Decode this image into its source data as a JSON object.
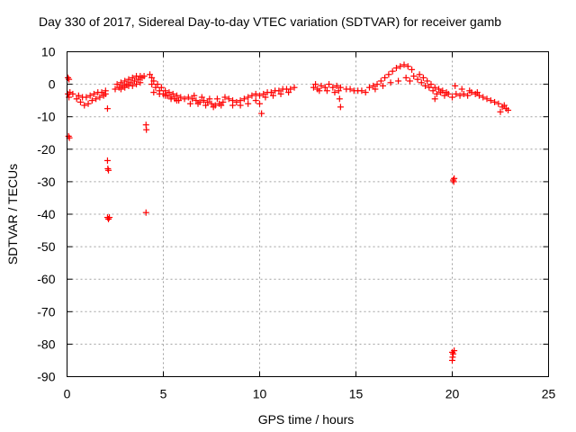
{
  "chart_data": {
    "type": "scatter",
    "title": "Day 330 of 2017, Sidereal Day-to-day VTEC variation (SDTVAR) for receiver gamb",
    "xlabel": "GPS time / hours",
    "ylabel": "SDTVAR / TECUs",
    "xlim": [
      0,
      25
    ],
    "ylim": [
      -90,
      10
    ],
    "xticks": [
      0,
      5,
      10,
      15,
      20,
      25
    ],
    "yticks": [
      10,
      0,
      -10,
      -20,
      -30,
      -40,
      -50,
      -60,
      -70,
      -80,
      -90
    ],
    "grid": true,
    "marker": "+",
    "series_color": "#ff0000",
    "series": [
      {
        "name": "SDTVAR",
        "points": [
          [
            0.05,
            2.0
          ],
          [
            0.1,
            1.5
          ],
          [
            0.05,
            -3.0
          ],
          [
            0.1,
            -4.0
          ],
          [
            0.15,
            -2.5
          ],
          [
            0.08,
            -16.0
          ],
          [
            0.12,
            -16.5
          ],
          [
            0.3,
            -3.0
          ],
          [
            0.5,
            -4.5
          ],
          [
            0.7,
            -5.5
          ],
          [
            0.9,
            -6.5
          ],
          [
            1.1,
            -6.0
          ],
          [
            1.3,
            -5.0
          ],
          [
            1.5,
            -4.5
          ],
          [
            1.7,
            -4.0
          ],
          [
            1.9,
            -3.5
          ],
          [
            2.0,
            -3.0
          ],
          [
            2.1,
            -7.5
          ],
          [
            0.6,
            -3.5
          ],
          [
            0.8,
            -4.0
          ],
          [
            1.0,
            -4.0
          ],
          [
            1.2,
            -3.5
          ],
          [
            1.4,
            -3.0
          ],
          [
            1.6,
            -2.5
          ],
          [
            1.8,
            -2.5
          ],
          [
            2.0,
            -2.0
          ],
          [
            2.1,
            -23.5
          ],
          [
            2.12,
            -26.0
          ],
          [
            2.15,
            -26.5
          ],
          [
            2.1,
            -41.0
          ],
          [
            2.15,
            -41.5
          ],
          [
            2.2,
            -41.0
          ],
          [
            2.5,
            -1.5
          ],
          [
            2.7,
            -1.0
          ],
          [
            2.9,
            -0.5
          ],
          [
            3.1,
            0.0
          ],
          [
            3.3,
            0.5
          ],
          [
            3.5,
            1.0
          ],
          [
            3.7,
            1.5
          ],
          [
            3.9,
            2.0
          ],
          [
            4.0,
            2.5
          ],
          [
            2.6,
            0.0
          ],
          [
            2.8,
            0.5
          ],
          [
            3.0,
            1.0
          ],
          [
            3.2,
            1.5
          ],
          [
            3.4,
            2.0
          ],
          [
            3.6,
            2.5
          ],
          [
            3.8,
            2.5
          ],
          [
            2.8,
            -1.5
          ],
          [
            3.0,
            -1.0
          ],
          [
            3.2,
            -0.5
          ],
          [
            3.4,
            -0.5
          ],
          [
            3.6,
            0.0
          ],
          [
            3.8,
            0.5
          ],
          [
            4.1,
            -12.5
          ],
          [
            4.12,
            -14.0
          ],
          [
            4.1,
            -39.5
          ],
          [
            4.3,
            3.0
          ],
          [
            4.4,
            2.0
          ],
          [
            4.5,
            1.0
          ],
          [
            4.7,
            0.0
          ],
          [
            4.9,
            -1.0
          ],
          [
            5.1,
            -2.0
          ],
          [
            5.3,
            -2.5
          ],
          [
            5.5,
            -3.0
          ],
          [
            5.7,
            -3.5
          ],
          [
            5.9,
            -4.0
          ],
          [
            6.1,
            -4.5
          ],
          [
            4.4,
            0.0
          ],
          [
            4.6,
            -1.0
          ],
          [
            4.8,
            -2.0
          ],
          [
            5.0,
            -3.0
          ],
          [
            5.2,
            -3.5
          ],
          [
            5.4,
            -4.0
          ],
          [
            5.6,
            -4.5
          ],
          [
            5.8,
            -5.0
          ],
          [
            4.5,
            -2.5
          ],
          [
            4.8,
            -3.0
          ],
          [
            5.1,
            -3.5
          ],
          [
            5.4,
            -4.5
          ],
          [
            5.7,
            -5.0
          ],
          [
            6.3,
            -4.0
          ],
          [
            6.5,
            -4.5
          ],
          [
            6.7,
            -5.0
          ],
          [
            6.9,
            -5.5
          ],
          [
            7.1,
            -5.0
          ],
          [
            7.3,
            -5.5
          ],
          [
            7.5,
            -6.0
          ],
          [
            7.7,
            -6.5
          ],
          [
            7.9,
            -6.0
          ],
          [
            8.1,
            -5.5
          ],
          [
            6.4,
            -6.0
          ],
          [
            6.8,
            -6.0
          ],
          [
            7.2,
            -6.5
          ],
          [
            7.6,
            -7.0
          ],
          [
            8.0,
            -6.5
          ],
          [
            6.6,
            -3.5
          ],
          [
            7.0,
            -4.0
          ],
          [
            7.4,
            -4.5
          ],
          [
            7.8,
            -4.5
          ],
          [
            8.2,
            -4.0
          ],
          [
            8.4,
            -4.5
          ],
          [
            8.6,
            -5.0
          ],
          [
            8.8,
            -5.5
          ],
          [
            9.0,
            -5.0
          ],
          [
            9.2,
            -4.5
          ],
          [
            9.4,
            -4.0
          ],
          [
            9.6,
            -3.5
          ],
          [
            9.8,
            -3.0
          ],
          [
            10.0,
            -3.5
          ],
          [
            10.1,
            -9.0
          ],
          [
            8.6,
            -6.5
          ],
          [
            9.0,
            -6.5
          ],
          [
            9.4,
            -6.0
          ],
          [
            9.8,
            -5.0
          ],
          [
            10.0,
            -6.0
          ],
          [
            10.2,
            -3.0
          ],
          [
            10.4,
            -2.5
          ],
          [
            10.6,
            -2.5
          ],
          [
            10.8,
            -2.0
          ],
          [
            11.0,
            -2.0
          ],
          [
            11.2,
            -1.5
          ],
          [
            11.4,
            -1.5
          ],
          [
            11.6,
            -1.5
          ],
          [
            11.8,
            -1.0
          ],
          [
            10.3,
            -4.0
          ],
          [
            10.7,
            -3.5
          ],
          [
            11.1,
            -3.0
          ],
          [
            11.5,
            -2.5
          ],
          [
            12.8,
            -1.0
          ],
          [
            12.9,
            0.0
          ],
          [
            13.0,
            -1.5
          ],
          [
            13.2,
            -0.5
          ],
          [
            13.4,
            -1.0
          ],
          [
            13.6,
            0.0
          ],
          [
            13.8,
            -1.0
          ],
          [
            14.0,
            -0.5
          ],
          [
            14.1,
            -2.0
          ],
          [
            14.2,
            -7.0
          ],
          [
            14.15,
            -4.5
          ],
          [
            13.1,
            -2.0
          ],
          [
            13.5,
            -2.0
          ],
          [
            13.9,
            -2.5
          ],
          [
            14.2,
            -1.0
          ],
          [
            14.5,
            -1.5
          ],
          [
            14.7,
            -1.5
          ],
          [
            14.9,
            -2.0
          ],
          [
            15.1,
            -2.0
          ],
          [
            15.3,
            -2.0
          ],
          [
            15.5,
            -2.5
          ],
          [
            15.7,
            -1.0
          ],
          [
            15.9,
            -0.5
          ],
          [
            16.1,
            0.0
          ],
          [
            16.3,
            1.0
          ],
          [
            16.5,
            2.0
          ],
          [
            16.7,
            3.0
          ],
          [
            16.9,
            4.0
          ],
          [
            17.1,
            5.0
          ],
          [
            17.3,
            5.5
          ],
          [
            17.5,
            6.0
          ],
          [
            17.7,
            5.5
          ],
          [
            17.9,
            4.5
          ],
          [
            16.0,
            -1.5
          ],
          [
            16.4,
            -0.5
          ],
          [
            16.8,
            0.5
          ],
          [
            17.2,
            1.0
          ],
          [
            17.6,
            2.0
          ],
          [
            17.8,
            1.0
          ],
          [
            18.0,
            2.5
          ],
          [
            18.2,
            1.5
          ],
          [
            18.4,
            0.5
          ],
          [
            18.6,
            -0.5
          ],
          [
            18.8,
            -1.0
          ],
          [
            19.0,
            -2.0
          ],
          [
            19.2,
            -3.0
          ],
          [
            19.4,
            -2.5
          ],
          [
            19.6,
            -3.5
          ],
          [
            19.8,
            -3.0
          ],
          [
            20.0,
            -4.0
          ],
          [
            18.3,
            3.0
          ],
          [
            18.5,
            2.0
          ],
          [
            18.7,
            1.0
          ],
          [
            18.9,
            0.0
          ],
          [
            19.1,
            -1.0
          ],
          [
            19.3,
            -1.5
          ],
          [
            19.5,
            -2.0
          ],
          [
            19.7,
            -2.5
          ],
          [
            19.1,
            -4.5
          ],
          [
            20.05,
            -29.5
          ],
          [
            20.1,
            -29.0
          ],
          [
            20.08,
            -30.0
          ],
          [
            20.0,
            -82.5
          ],
          [
            20.05,
            -83.0
          ],
          [
            20.02,
            -84.0
          ],
          [
            20.1,
            -82.0
          ],
          [
            20.0,
            -85.0
          ],
          [
            20.2,
            -3.0
          ],
          [
            20.4,
            -3.5
          ],
          [
            20.6,
            -3.0
          ],
          [
            20.8,
            -3.5
          ],
          [
            21.0,
            -2.5
          ],
          [
            21.2,
            -3.0
          ],
          [
            21.4,
            -3.5
          ],
          [
            21.6,
            -4.0
          ],
          [
            21.8,
            -4.5
          ],
          [
            22.0,
            -5.0
          ],
          [
            22.2,
            -5.5
          ],
          [
            20.15,
            -0.5
          ],
          [
            20.5,
            -1.5
          ],
          [
            20.9,
            -2.0
          ],
          [
            21.3,
            -2.5
          ],
          [
            22.4,
            -6.0
          ],
          [
            22.6,
            -7.0
          ],
          [
            22.8,
            -7.5
          ],
          [
            22.5,
            -8.5
          ],
          [
            22.7,
            -6.5
          ],
          [
            22.9,
            -8.0
          ]
        ]
      }
    ]
  }
}
